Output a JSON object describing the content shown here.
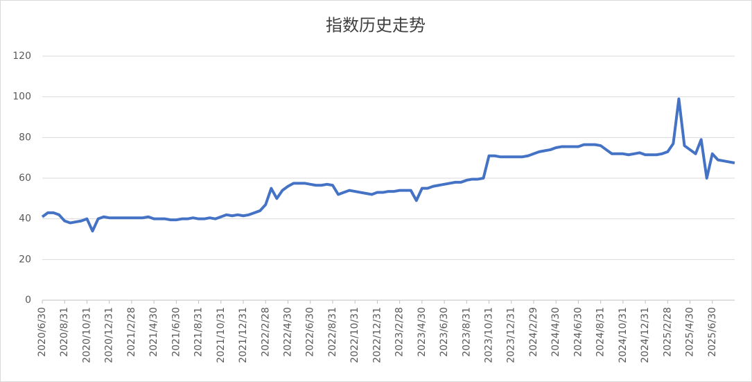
{
  "chart_data": {
    "type": "line",
    "title": "指数历史走势",
    "categories": [
      "2020/6/30",
      null,
      null,
      null,
      "2020/8/31",
      null,
      null,
      null,
      "2020/10/31",
      null,
      null,
      null,
      "2020/12/31",
      null,
      null,
      null,
      "2021/2/28",
      null,
      null,
      null,
      "2021/4/30",
      null,
      null,
      null,
      "2021/6/30",
      null,
      null,
      null,
      "2021/8/31",
      null,
      null,
      null,
      "2021/10/31",
      null,
      null,
      null,
      "2021/12/31",
      null,
      null,
      null,
      "2022/2/28",
      null,
      null,
      null,
      "2022/4/30",
      null,
      null,
      null,
      "2022/6/30",
      null,
      null,
      null,
      "2022/8/31",
      null,
      null,
      null,
      "2022/10/31",
      null,
      null,
      null,
      "2022/12/31",
      null,
      null,
      null,
      "2023/2/28",
      null,
      null,
      null,
      "2023/4/30",
      null,
      null,
      null,
      "2023/6/30",
      null,
      null,
      null,
      "2023/8/31",
      null,
      null,
      null,
      "2023/10/31",
      null,
      null,
      null,
      "2023/12/31",
      null,
      null,
      null,
      "2024/2/29",
      null,
      null,
      null,
      "2024/4/30",
      null,
      null,
      null,
      "2024/6/30",
      null,
      null,
      null,
      "2024/8/31",
      null,
      null,
      null,
      "2024/10/31",
      null,
      null,
      null,
      "2024/12/31",
      null,
      null,
      null,
      "2025/2/28",
      null,
      null,
      null,
      "2025/4/30",
      null,
      null,
      null,
      "2025/6/30",
      null,
      null,
      null,
      null
    ],
    "series": [
      {
        "name": "指数",
        "color": "#4472c4",
        "values": [
          41,
          43,
          43,
          42,
          39,
          38,
          38.5,
          39,
          40,
          34,
          40,
          41,
          40.5,
          40.5,
          40.5,
          40.5,
          40.5,
          40.5,
          40.5,
          41,
          40,
          40,
          40,
          39.5,
          39.5,
          40,
          40,
          40.5,
          40,
          40,
          40.5,
          40,
          41,
          42,
          41.5,
          42,
          41.5,
          42,
          43,
          44,
          47,
          55,
          50,
          54,
          56,
          57.5,
          57.5,
          57.5,
          57,
          56.5,
          56.5,
          57,
          56.5,
          52,
          53,
          54,
          53.5,
          53,
          52.5,
          52,
          53,
          53,
          53.5,
          53.5,
          54,
          54,
          54,
          49,
          55,
          55,
          56,
          56.5,
          57,
          57.5,
          58,
          58,
          59,
          59.5,
          59.5,
          60,
          71,
          71,
          70.5,
          70.5,
          70.5,
          70.5,
          70.5,
          71,
          72,
          73,
          73.5,
          74,
          75,
          75.5,
          75.5,
          75.5,
          75.5,
          76.5,
          76.5,
          76.5,
          76,
          74,
          72,
          72,
          72,
          71.5,
          72,
          72.5,
          71.5,
          71.5,
          71.5,
          72,
          73,
          77,
          99,
          76,
          74,
          72,
          79,
          60,
          72,
          69,
          68.5,
          68,
          67.5
        ]
      }
    ],
    "ylim": [
      0,
      120
    ],
    "yticks": [
      0,
      20,
      40,
      60,
      80,
      100,
      120
    ],
    "grid": true
  }
}
